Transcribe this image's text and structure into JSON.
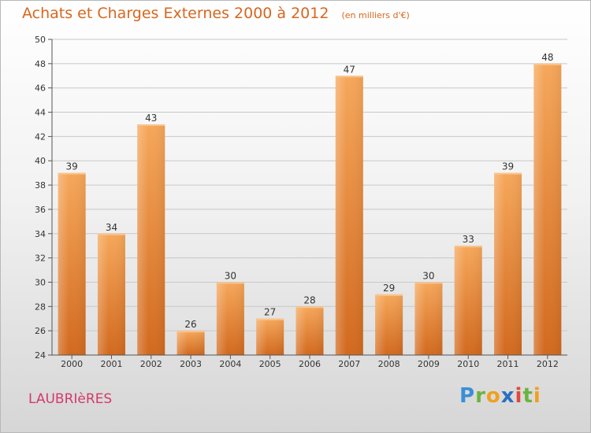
{
  "chart_data": {
    "type": "bar",
    "title": "Achats et Charges Externes 2000 à 2012",
    "subtitle": "(en milliers d'€)",
    "categories": [
      "2000",
      "2001",
      "2002",
      "2003",
      "2004",
      "2005",
      "2006",
      "2007",
      "2008",
      "2009",
      "2010",
      "2011",
      "2012"
    ],
    "values": [
      39,
      34,
      43,
      26,
      30,
      27,
      28,
      47,
      29,
      30,
      33,
      39,
      48
    ],
    "ylim": [
      24,
      50
    ],
    "yticks": [
      24,
      26,
      28,
      30,
      32,
      34,
      36,
      38,
      40,
      42,
      44,
      46,
      48,
      50
    ],
    "xlabel": "",
    "ylabel": "",
    "grid": true,
    "bar_color": "#e8872f"
  },
  "footer": {
    "town": "LAUBRIèRES",
    "logo": "Proxiti"
  }
}
